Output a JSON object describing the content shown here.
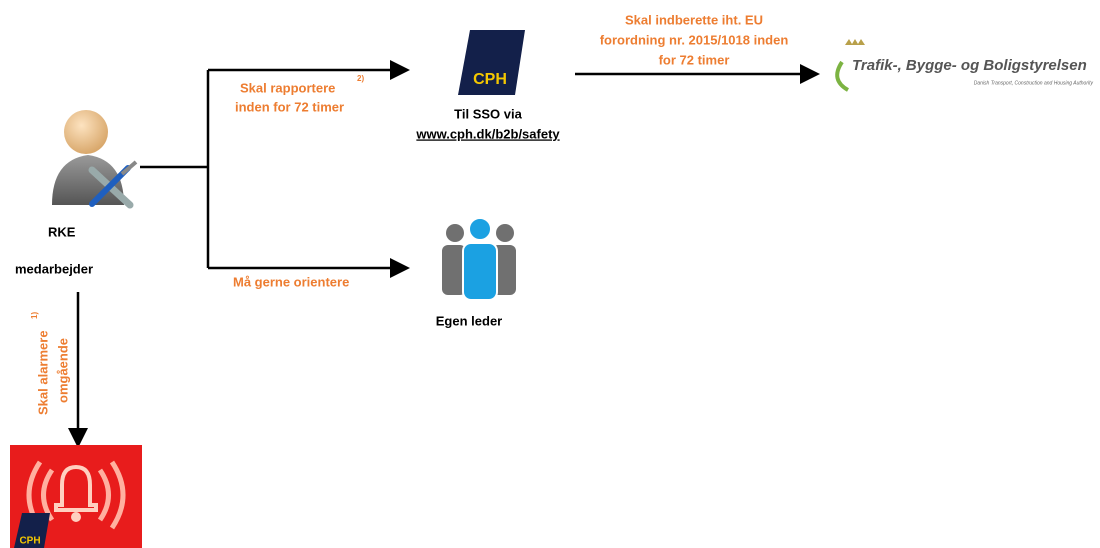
{
  "nodes": {
    "reporter": {
      "label": "RKE",
      "sublabel": "medarbejder"
    },
    "sso": {
      "logo": "CPH",
      "label": "Til SSO via",
      "link": "www.cph.dk/b2b/safety"
    },
    "authority": {
      "name": "Trafik-, Bygge- og Boligstyrelsen",
      "subtitle": "Danish Transport, Construction and Housing Authority"
    },
    "leader": {
      "label": "Egen leder"
    },
    "alarm": {
      "logo": "CPH"
    }
  },
  "edges": {
    "to_sso": {
      "lines": [
        "Skal rapportere",
        "inden for 72 timer"
      ],
      "note": "2)"
    },
    "to_authority": {
      "lines": [
        "Skal indberette iht. EU",
        "forordning nr. 2015/1018 inden",
        "for 72 timer"
      ]
    },
    "to_leader": {
      "lines": [
        "Må gerne orientere"
      ]
    },
    "to_alarm": {
      "lines": [
        "Skal alarmere",
        "omgående"
      ],
      "note": "1)"
    }
  }
}
